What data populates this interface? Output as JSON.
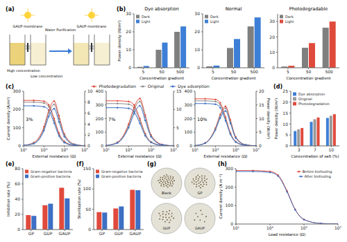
{
  "chart_data": [
    {
      "type": "diagram",
      "panel_label": "(a)",
      "nodes": [
        {
          "label": "GAUP membrane"
        },
        {
          "label": "Water Purification"
        },
        {
          "label": "GAUP membrane"
        },
        {
          "label": "High concentration"
        },
        {
          "label": "Low concentration"
        }
      ]
    },
    {
      "type": "bar",
      "panel_label": "(b)",
      "title": "Dye absorption",
      "x_label": "Concentration gradient",
      "y_label": "Power density (W/m²)",
      "categories": [
        "5",
        "50",
        "500"
      ],
      "series": [
        {
          "name": "Dark",
          "color": "#7f7f7f",
          "values": [
            0.5,
            10,
            20
          ]
        },
        {
          "name": "Light",
          "color": "#3d7fd6",
          "values": [
            1,
            14,
            23
          ]
        }
      ],
      "ylim": [
        0,
        30
      ],
      "yticks": [
        0,
        10,
        20,
        30
      ],
      "legend": "upper left"
    },
    {
      "type": "bar",
      "title": "Normal",
      "x_label": "Concentration gradient",
      "categories": [
        "5",
        "50",
        "500"
      ],
      "series": [
        {
          "name": "Dark",
          "color": "#7f7f7f",
          "values": [
            0.8,
            11,
            23
          ]
        },
        {
          "name": "Light",
          "color": "#3d7fd6",
          "values": [
            1.2,
            16,
            28
          ]
        }
      ],
      "ylim": [
        0,
        30
      ],
      "yticks": [
        0,
        10,
        20,
        30
      ],
      "legend": "upper left"
    },
    {
      "type": "bar",
      "title": "Photodegradable",
      "x_label": "Concentration gradient",
      "categories": [
        "5",
        "50",
        "500"
      ],
      "series": [
        {
          "name": "Dark",
          "color": "#7f7f7f",
          "values": [
            0.8,
            13,
            26
          ]
        },
        {
          "name": "Light",
          "color": "#e04a3c",
          "values": [
            1.3,
            16,
            30
          ]
        }
      ],
      "ylim": [
        0,
        35
      ],
      "yticks": [
        0,
        10,
        20,
        30
      ],
      "legend": "upper left"
    },
    {
      "type": "line",
      "panel_label": "(c)",
      "annotation": "3%",
      "x_label": "External resistance (Ω)",
      "y_label": "Current density (A/m²)",
      "log": "x",
      "marker": "circle",
      "legend": "upper center",
      "x": [
        10,
        100,
        1000,
        3000,
        10000,
        30000,
        100000,
        1000000,
        10000000
      ],
      "xlim": [
        10,
        10000000
      ],
      "xticks": [
        {
          "value": 10,
          "label": "10¹"
        },
        {
          "value": 1000,
          "label": "10³"
        },
        {
          "value": 100000,
          "label": "10⁵"
        },
        {
          "value": 10000000,
          "label": "10⁷"
        }
      ],
      "ylim": [
        0,
        300
      ],
      "yticks": [
        0,
        100,
        200,
        300
      ],
      "y2lim": [
        0,
        10
      ],
      "y2ticks": [
        0,
        2,
        4,
        6,
        8,
        10
      ],
      "series": [
        {
          "name": "Photodegradation",
          "color": "#e04a3c",
          "values": [
            250,
            250,
            245,
            225,
            150,
            70,
            25,
            3,
            0.3
          ]
        },
        {
          "name": "Original",
          "color": "#8a8a8a",
          "values": [
            240,
            240,
            235,
            215,
            140,
            62,
            22,
            2.5,
            0.3
          ]
        },
        {
          "name": "Dye adsorption",
          "color": "#3d6fc4",
          "values": [
            220,
            220,
            215,
            195,
            125,
            55,
            18,
            2,
            0.2
          ]
        },
        {
          "name": "Photodegradation",
          "color": "#e04a3c",
          "axis": "y2",
          "values": [
            0.1,
            0.6,
            3.5,
            6.5,
            8.2,
            5.5,
            2.2,
            0.3,
            0.03
          ]
        },
        {
          "name": "Original",
          "color": "#8a8a8a",
          "axis": "y2",
          "values": [
            0.1,
            0.5,
            3.1,
            6,
            7.6,
            5,
            2,
            0.3,
            0.03
          ]
        },
        {
          "name": "Dye adsorption",
          "color": "#3d6fc4",
          "axis": "y2",
          "values": [
            0.1,
            0.4,
            2.8,
            5.4,
            6.8,
            4.4,
            1.7,
            0.2,
            0.02
          ]
        }
      ]
    },
    {
      "type": "line",
      "annotation": "7%",
      "x_label": "External resistance (Ω)",
      "log": "x",
      "marker": "circle",
      "x": [
        10,
        100,
        1000,
        3000,
        10000,
        30000,
        100000,
        1000000,
        10000000
      ],
      "xlim": [
        10,
        10000000
      ],
      "xticks": [
        {
          "value": 10,
          "label": "10¹"
        },
        {
          "value": 1000,
          "label": "10³"
        },
        {
          "value": 100000,
          "label": "10⁵"
        },
        {
          "value": 10000000,
          "label": "10⁷"
        }
      ],
      "ylim": [
        0,
        400
      ],
      "yticks": [
        0,
        100,
        200,
        300,
        400
      ],
      "y2lim": [
        0,
        15
      ],
      "y2ticks": [
        0,
        5,
        10,
        15
      ],
      "series": [
        {
          "name": "Photodegradation",
          "color": "#e04a3c",
          "values": [
            330,
            330,
            325,
            300,
            200,
            90,
            30,
            3.5,
            0.4
          ]
        },
        {
          "name": "Original",
          "color": "#8a8a8a",
          "values": [
            310,
            310,
            305,
            280,
            185,
            85,
            28,
            3,
            0.3
          ]
        },
        {
          "name": "Dye adsorption",
          "color": "#3d6fc4",
          "values": [
            280,
            280,
            275,
            250,
            165,
            75,
            25,
            3,
            0.3
          ]
        },
        {
          "name": "Photodegradation",
          "color": "#e04a3c",
          "axis": "y2",
          "values": [
            0.1,
            1,
            6,
            10.5,
            13,
            8.5,
            3,
            0.4,
            0.04
          ]
        },
        {
          "name": "Original",
          "color": "#8a8a8a",
          "axis": "y2",
          "values": [
            0.1,
            0.9,
            5.5,
            9.8,
            12.2,
            8,
            2.8,
            0.3,
            0.03
          ]
        },
        {
          "name": "Dye adsorption",
          "color": "#3d6fc4",
          "axis": "y2",
          "values": [
            0.1,
            0.8,
            5,
            8.8,
            11,
            7,
            2.5,
            0.3,
            0.03
          ]
        }
      ]
    },
    {
      "type": "line",
      "annotation": "10%",
      "x_label": "External resistance (Ω)",
      "y2_label": "Power density (W/m²)",
      "log": "x",
      "marker": "circle",
      "x": [
        10,
        100,
        1000,
        3000,
        10000,
        30000,
        100000,
        1000000,
        10000000
      ],
      "xlim": [
        10,
        10000000
      ],
      "xticks": [
        {
          "value": 10,
          "label": "10¹"
        },
        {
          "value": 1000,
          "label": "10³"
        },
        {
          "value": 100000,
          "label": "10⁵"
        },
        {
          "value": 10000000,
          "label": "10⁷"
        }
      ],
      "ylim": [
        0,
        400
      ],
      "yticks": [
        0,
        100,
        200,
        300,
        400
      ],
      "y2lim": [
        0,
        20
      ],
      "y2ticks": [
        0,
        5,
        10,
        15,
        20
      ],
      "series": [
        {
          "name": "Photodegradation",
          "color": "#e04a3c",
          "values": [
            345,
            345,
            340,
            315,
            210,
            95,
            32,
            4,
            0.4
          ]
        },
        {
          "name": "Original",
          "color": "#8a8a8a",
          "values": [
            330,
            330,
            325,
            300,
            200,
            90,
            30,
            3.5,
            0.4
          ]
        },
        {
          "name": "Dye adsorption",
          "color": "#3d6fc4",
          "values": [
            310,
            310,
            305,
            280,
            185,
            85,
            28,
            3,
            0.3
          ]
        },
        {
          "name": "Photodegradation",
          "color": "#e04a3c",
          "axis": "y2",
          "values": [
            0.1,
            1.1,
            6.5,
            11.5,
            14.5,
            9.5,
            3.3,
            0.4,
            0.04
          ]
        },
        {
          "name": "Original",
          "color": "#8a8a8a",
          "axis": "y2",
          "values": [
            0.1,
            1,
            6.2,
            11,
            13.8,
            9,
            3.1,
            0.4,
            0.04
          ]
        },
        {
          "name": "Dye adsorption",
          "color": "#3d6fc4",
          "axis": "y2",
          "values": [
            0.1,
            1,
            5.8,
            10.2,
            12.8,
            8.3,
            2.9,
            0.3,
            0.03
          ]
        }
      ]
    },
    {
      "type": "bar",
      "panel_label": "(d)",
      "x_label": "Concentration of salt (%)",
      "y_label": "Power density (W/m²)",
      "categories": [
        "3",
        "7",
        "10"
      ],
      "series": [
        {
          "name": "Dye absorption",
          "color": "#3d7fd6",
          "values": [
            6.8,
            11,
            12.8
          ]
        },
        {
          "name": "Original",
          "color": "#9a9a9a",
          "values": [
            7.6,
            12.2,
            13.8
          ]
        },
        {
          "name": "Photodegradation",
          "color": "#e04a3c",
          "values": [
            8.2,
            13,
            14.5
          ]
        }
      ],
      "ylim": [
        0,
        25
      ],
      "yticks": [
        0,
        5,
        10,
        15,
        20,
        25
      ],
      "legend": "upper left"
    },
    {
      "type": "bar",
      "panel_label": "(e)",
      "y_label": "Inhibition rate (%)",
      "categories": [
        "GP",
        "GUP",
        "GAUP"
      ],
      "series": [
        {
          "name": "Gram-negative bacteria",
          "color": "#e04a3c",
          "values": [
            19,
            32,
            55
          ]
        },
        {
          "name": "Gram-positive bacteria",
          "color": "#3d6fc4",
          "values": [
            18,
            34,
            41
          ]
        }
      ],
      "ylim": [
        0,
        80
      ],
      "yticks": [
        0,
        20,
        40,
        60,
        80
      ],
      "legend": "upper left"
    },
    {
      "type": "bar",
      "panel_label": "(f)",
      "y_label": "Sterilization rate (%)",
      "categories": [
        "GP",
        "GUP",
        "GAUP"
      ],
      "series": [
        {
          "name": "Gram-negative bacteria",
          "color": "#e04a3c",
          "values": [
            43,
            52,
            98
          ]
        },
        {
          "name": "Gram-positive bacteria",
          "color": "#3d6fc4",
          "values": [
            42,
            57,
            97
          ]
        }
      ],
      "ylim": [
        0,
        150
      ],
      "yticks": [
        0,
        50,
        100,
        150
      ],
      "legend": "upper left"
    },
    {
      "type": "image_grid",
      "panel_label": "(g)",
      "labels": [
        "Blank",
        "GP",
        "GUP",
        "GAUP"
      ]
    },
    {
      "type": "line",
      "panel_label": "(h)",
      "x_label": "Load resistance (Ω)",
      "y_label": "Current density (A m⁻²)",
      "log": "x",
      "marker": "circle",
      "legend": "upper right",
      "x": [
        10,
        100,
        1000,
        3000,
        10000,
        30000,
        100000,
        1000000,
        10000000
      ],
      "xlim": [
        10,
        10000000
      ],
      "xticks": [
        {
          "value": 10,
          "label": "10¹"
        },
        {
          "value": 1000,
          "label": "10³"
        },
        {
          "value": 100000,
          "label": "10⁵"
        },
        {
          "value": 10000000,
          "label": "10⁷"
        }
      ],
      "ylim": [
        0,
        300
      ],
      "yticks": [
        0,
        100,
        200,
        300
      ],
      "series": [
        {
          "name": "Before biofouling",
          "color": "#e04a3c",
          "values": [
            290,
            290,
            285,
            265,
            180,
            80,
            25,
            3,
            0.3
          ]
        },
        {
          "name": "After biofouling",
          "color": "#3d6fc4",
          "values": [
            285,
            285,
            280,
            260,
            175,
            78,
            24,
            3,
            0.3
          ]
        }
      ]
    }
  ]
}
